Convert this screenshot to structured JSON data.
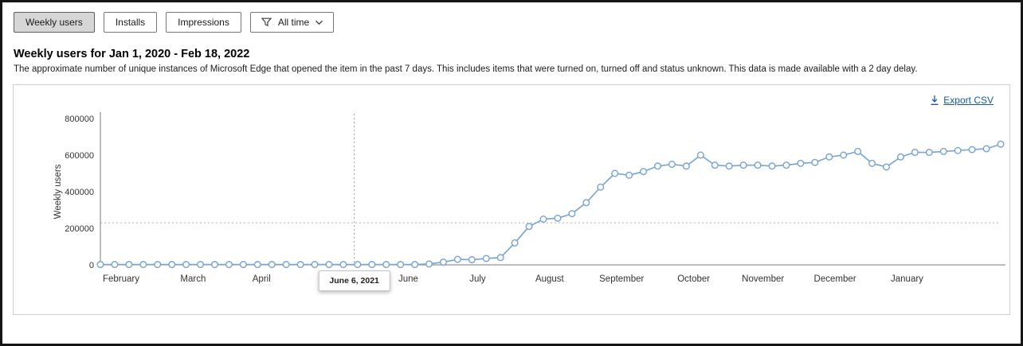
{
  "tabs": [
    {
      "label": "Weekly users",
      "active": true
    },
    {
      "label": "Installs",
      "active": false
    },
    {
      "label": "Impressions",
      "active": false
    }
  ],
  "filter": {
    "label": "All time"
  },
  "page": {
    "title": "Weekly users for Jan 1, 2020 - Feb 18, 2022",
    "description": "The approximate number of unique instances of Microsoft Edge that opened the item in the past 7 days. This includes items that were turned on, turned off and status unknown. This data is made available with a 2 day delay."
  },
  "chart": {
    "export_label": "Export CSV"
  },
  "colors": {
    "series": "#75a3d6",
    "link": "#1756a9",
    "axis": "#7a7a7a",
    "reference_line": "#b0b0b0"
  },
  "chart_data": {
    "type": "line",
    "title": "Weekly users for Jan 1, 2020 - Feb 18, 2022",
    "xlabel": "",
    "ylabel": "Weekly users",
    "ylim": [
      0,
      800000
    ],
    "yticks": [
      0,
      200000,
      400000,
      600000,
      800000
    ],
    "grid": false,
    "reference_line": 230000,
    "tooltip": {
      "label": "June 6, 2021",
      "x_fraction": 0.282
    },
    "x_ticks": [
      {
        "label": "February",
        "f": 0.023
      },
      {
        "label": "March",
        "f": 0.103
      },
      {
        "label": "April",
        "f": 0.179
      },
      {
        "label": "June",
        "f": 0.342
      },
      {
        "label": "July",
        "f": 0.419
      },
      {
        "label": "August",
        "f": 0.499
      },
      {
        "label": "September",
        "f": 0.579
      },
      {
        "label": "October",
        "f": 0.659
      },
      {
        "label": "November",
        "f": 0.736
      },
      {
        "label": "December",
        "f": 0.816
      },
      {
        "label": "January",
        "f": 0.896
      }
    ],
    "values": [
      2000,
      2000,
      2000,
      2000,
      2000,
      2000,
      2000,
      2000,
      2000,
      2000,
      2000,
      2000,
      2000,
      2000,
      2000,
      2000,
      2000,
      2000,
      2000,
      2000,
      2000,
      2000,
      2000,
      5000,
      15000,
      30000,
      28000,
      35000,
      40000,
      120000,
      210000,
      250000,
      255000,
      280000,
      340000,
      425000,
      500000,
      490000,
      510000,
      540000,
      550000,
      540000,
      600000,
      545000,
      540000,
      545000,
      545000,
      540000,
      545000,
      555000,
      560000,
      590000,
      600000,
      620000,
      555000,
      535000,
      590000,
      615000,
      615000,
      620000,
      625000,
      630000,
      635000,
      660000
    ]
  }
}
